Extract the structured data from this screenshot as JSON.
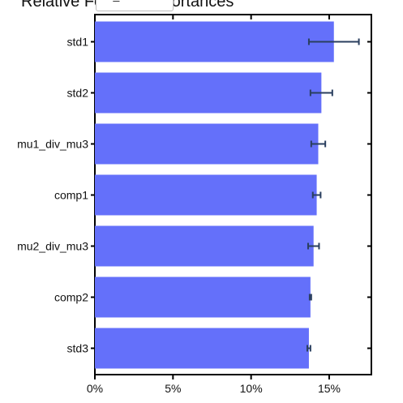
{
  "chart_data": {
    "type": "bar",
    "orientation": "horizontal",
    "title": "Relative Feature Importances",
    "categories": [
      "std1",
      "std2",
      "mu1_div_mu3",
      "comp1",
      "mu2_div_mu3",
      "comp2",
      "std3"
    ],
    "values": [
      15.3,
      14.5,
      14.3,
      14.2,
      14.0,
      13.8,
      13.7
    ],
    "errors": [
      1.6,
      0.7,
      0.45,
      0.25,
      0.35,
      0.05,
      0.1
    ],
    "xlim": [
      0,
      17.7
    ],
    "xticks": [
      0,
      5,
      10,
      15
    ],
    "xtick_labels": [
      "0%",
      "5%",
      "10%",
      "15%"
    ],
    "xlabel": "",
    "ylabel": "",
    "grid": false,
    "legend": false,
    "bar_color": "#6470fa",
    "error_color": "#2a3f5f"
  },
  "overlay": {
    "text": "rf_rdc"
  }
}
